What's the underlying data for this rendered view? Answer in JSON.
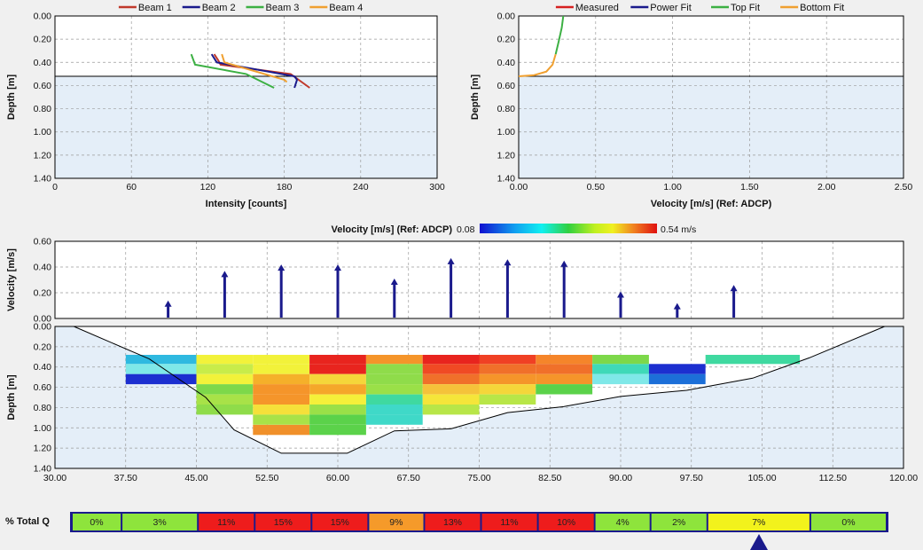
{
  "chart_data": [
    {
      "type": "line",
      "id": "intensity",
      "xlabel": "Intensity [counts]",
      "ylabel": "Depth [m]",
      "xlim": [
        0,
        300
      ],
      "ylim": [
        0,
        1.4
      ],
      "xticks": [
        "0",
        "60",
        "120",
        "180",
        "240",
        "300"
      ],
      "yticks": [
        "0.00",
        "0.20",
        "0.40",
        "0.60",
        "0.80",
        "1.00",
        "1.20",
        "1.40"
      ],
      "water_surface_depth": 0.52,
      "grid": true,
      "legend": "top",
      "series": [
        {
          "name": "Beam 1",
          "color": "#c0392b",
          "points": [
            [
              125,
              0.33
            ],
            [
              128,
              0.38
            ],
            [
              130,
              0.42
            ],
            [
              185,
              0.5
            ],
            [
              200,
              0.62
            ]
          ]
        },
        {
          "name": "Beam 2",
          "color": "#1a1a8c",
          "points": [
            [
              123,
              0.33
            ],
            [
              127,
              0.4
            ],
            [
              188,
              0.52
            ],
            [
              190,
              0.55
            ],
            [
              188,
              0.62
            ]
          ]
        },
        {
          "name": "Beam 3",
          "color": "#3cb043",
          "points": [
            [
              107,
              0.33
            ],
            [
              110,
              0.42
            ],
            [
              150,
              0.5
            ],
            [
              172,
              0.62
            ]
          ]
        },
        {
          "name": "Beam 4",
          "color": "#f0a030",
          "points": [
            [
              131,
              0.33
            ],
            [
              133,
              0.4
            ],
            [
              180,
              0.55
            ],
            [
              182,
              0.57
            ]
          ]
        }
      ]
    },
    {
      "type": "line",
      "id": "velocity_profile",
      "xlabel": "Velocity [m/s] (Ref: ADCP)",
      "ylabel": "Depth [m]",
      "xlim": [
        0,
        2.5
      ],
      "ylim": [
        0,
        1.4
      ],
      "xticks": [
        "0.00",
        "0.50",
        "1.00",
        "1.50",
        "2.00",
        "2.50"
      ],
      "yticks": [
        "0.00",
        "0.20",
        "0.40",
        "0.60",
        "0.80",
        "1.00",
        "1.20",
        "1.40"
      ],
      "water_surface_depth": 0.52,
      "grid": true,
      "legend": "top",
      "series": [
        {
          "name": "Measured",
          "color": "#d62020",
          "points": []
        },
        {
          "name": "Power Fit",
          "color": "#1a1a8c",
          "points": []
        },
        {
          "name": "Top Fit",
          "color": "#3cb043",
          "points": [
            [
              0.29,
              0.0
            ],
            [
              0.28,
              0.1
            ],
            [
              0.26,
              0.22
            ],
            [
              0.24,
              0.33
            ]
          ]
        },
        {
          "name": "Bottom Fit",
          "color": "#f0a030",
          "points": [
            [
              0.24,
              0.33
            ],
            [
              0.22,
              0.42
            ],
            [
              0.18,
              0.48
            ],
            [
              0.1,
              0.51
            ],
            [
              0.0,
              0.52
            ]
          ]
        }
      ]
    },
    {
      "type": "bar",
      "id": "mean_velocity",
      "ylabel": "Velocity [m/s]",
      "ylim": [
        0,
        0.6
      ],
      "yticks": [
        "0.60",
        "0.40",
        "0.20",
        "0.00"
      ],
      "x": [
        42,
        48,
        54,
        60,
        66,
        72,
        78,
        84,
        90,
        96,
        102
      ],
      "values": [
        0.14,
        0.37,
        0.42,
        0.42,
        0.31,
        0.47,
        0.46,
        0.45,
        0.21,
        0.12,
        0.26
      ],
      "color": "#1a1a8c"
    },
    {
      "type": "heatmap",
      "id": "cross_section",
      "title": "Velocity [m/s] (Ref: ADCP)",
      "colorbar_min": "0.08",
      "colorbar_max": "0.54 m/s",
      "xlabel": "",
      "ylabel": "Depth [m]",
      "xlim": [
        30,
        120
      ],
      "ylim": [
        0,
        1.4
      ],
      "xticks": [
        "30.00",
        "37.50",
        "45.00",
        "52.50",
        "60.00",
        "67.50",
        "75.00",
        "82.50",
        "90.00",
        "97.50",
        "105.00",
        "112.50",
        "120.00"
      ],
      "yticks": [
        "0.00",
        "0.20",
        "0.40",
        "0.60",
        "0.80",
        "1.00",
        "1.20",
        "1.40"
      ],
      "bed_profile": [
        [
          32,
          0.0
        ],
        [
          40,
          0.32
        ],
        [
          46,
          0.7
        ],
        [
          49,
          1.02
        ],
        [
          54,
          1.25
        ],
        [
          61,
          1.25
        ],
        [
          66,
          1.03
        ],
        [
          72,
          1.01
        ],
        [
          78,
          0.85
        ],
        [
          84,
          0.79
        ],
        [
          90,
          0.69
        ],
        [
          97,
          0.63
        ],
        [
          104,
          0.51
        ],
        [
          110,
          0.31
        ],
        [
          118,
          0.0
        ]
      ],
      "cells": [
        {
          "x": [
            37.5,
            45
          ],
          "rows": [
            [
              0.28,
              0.37,
              "#2fb9e0"
            ],
            [
              0.37,
              0.47,
              "#7fe8e8"
            ],
            [
              0.47,
              0.57,
              "#1c2fd0"
            ]
          ]
        },
        {
          "x": [
            45,
            51
          ],
          "rows": [
            [
              0.28,
              0.37,
              "#f2f23a"
            ],
            [
              0.37,
              0.47,
              "#c8ec4a"
            ],
            [
              0.47,
              0.57,
              "#f2f23a"
            ],
            [
              0.57,
              0.67,
              "#7dd84a"
            ],
            [
              0.67,
              0.77,
              "#a8e248"
            ],
            [
              0.77,
              0.87,
              "#8fdc4a"
            ]
          ]
        },
        {
          "x": [
            51,
            57
          ],
          "rows": [
            [
              0.28,
              0.37,
              "#f2f23a"
            ],
            [
              0.37,
              0.47,
              "#f2f23a"
            ],
            [
              0.47,
              0.57,
              "#f5b02a"
            ],
            [
              0.57,
              0.67,
              "#f5952a"
            ],
            [
              0.67,
              0.77,
              "#f5952a"
            ],
            [
              0.77,
              0.87,
              "#f5e03a"
            ],
            [
              0.87,
              0.97,
              "#a8e248"
            ],
            [
              0.97,
              1.07,
              "#f0902a"
            ]
          ]
        },
        {
          "x": [
            57,
            63
          ],
          "rows": [
            [
              0.28,
              0.37,
              "#e8241e"
            ],
            [
              0.37,
              0.47,
              "#e8241e"
            ],
            [
              0.47,
              0.57,
              "#f5d63a"
            ],
            [
              0.57,
              0.67,
              "#f5a72a"
            ],
            [
              0.67,
              0.77,
              "#f5f03a"
            ],
            [
              0.77,
              0.87,
              "#9ae048"
            ],
            [
              0.87,
              0.97,
              "#5bd24a"
            ],
            [
              0.97,
              1.07,
              "#5bd24a"
            ]
          ]
        },
        {
          "x": [
            63,
            69
          ],
          "rows": [
            [
              0.28,
              0.37,
              "#f5952a"
            ],
            [
              0.37,
              0.47,
              "#8fdc4a"
            ],
            [
              0.47,
              0.57,
              "#8fdc4a"
            ],
            [
              0.57,
              0.67,
              "#9ae048"
            ],
            [
              0.67,
              0.77,
              "#3fd9a0"
            ],
            [
              0.77,
              0.87,
              "#3fd9c8"
            ],
            [
              0.87,
              0.97,
              "#3fd9c8"
            ]
          ]
        },
        {
          "x": [
            69,
            75
          ],
          "rows": [
            [
              0.28,
              0.37,
              "#e8241e"
            ],
            [
              0.37,
              0.47,
              "#f04a24"
            ],
            [
              0.47,
              0.57,
              "#f0702a"
            ],
            [
              0.57,
              0.67,
              "#f5c23a"
            ],
            [
              0.67,
              0.77,
              "#f5e53a"
            ],
            [
              0.77,
              0.87,
              "#b8e648"
            ]
          ]
        },
        {
          "x": [
            75,
            81
          ],
          "rows": [
            [
              0.28,
              0.37,
              "#f04024"
            ],
            [
              0.37,
              0.47,
              "#f0702a"
            ],
            [
              0.47,
              0.57,
              "#f5952a"
            ],
            [
              0.57,
              0.67,
              "#f5d63a"
            ],
            [
              0.67,
              0.77,
              "#b8e648"
            ]
          ]
        },
        {
          "x": [
            81,
            87
          ],
          "rows": [
            [
              0.28,
              0.37,
              "#f5852a"
            ],
            [
              0.37,
              0.47,
              "#f0702a"
            ],
            [
              0.47,
              0.57,
              "#f5952a"
            ],
            [
              0.57,
              0.67,
              "#5bd24a"
            ]
          ]
        },
        {
          "x": [
            87,
            93
          ],
          "rows": [
            [
              0.28,
              0.37,
              "#7dd84a"
            ],
            [
              0.37,
              0.47,
              "#3fd9b8"
            ],
            [
              0.47,
              0.57,
              "#7fe8e8"
            ]
          ]
        },
        {
          "x": [
            93,
            99
          ],
          "rows": [
            [
              0.37,
              0.47,
              "#1c2fd0"
            ],
            [
              0.47,
              0.57,
              "#1c6fd8"
            ]
          ]
        },
        {
          "x": [
            99,
            109
          ],
          "rows": [
            [
              0.28,
              0.37,
              "#3fd9a0"
            ]
          ]
        }
      ]
    }
  ],
  "percent_q": {
    "label": "% Total Q",
    "cells": [
      {
        "text": "0%",
        "color": "#8ee43c"
      },
      {
        "text": "3%",
        "color": "#8ee43c"
      },
      {
        "text": "11%",
        "color": "#ee1c1c"
      },
      {
        "text": "15%",
        "color": "#ee1c1c"
      },
      {
        "text": "15%",
        "color": "#ee1c1c"
      },
      {
        "text": "9%",
        "color": "#f59a2a"
      },
      {
        "text": "13%",
        "color": "#ee1c1c"
      },
      {
        "text": "11%",
        "color": "#ee1c1c"
      },
      {
        "text": "10%",
        "color": "#ee1c1c"
      },
      {
        "text": "4%",
        "color": "#8ee43c"
      },
      {
        "text": "2%",
        "color": "#8ee43c"
      },
      {
        "text": "7%",
        "color": "#f2f21c"
      },
      {
        "text": "0%",
        "color": "#8ee43c"
      }
    ]
  }
}
